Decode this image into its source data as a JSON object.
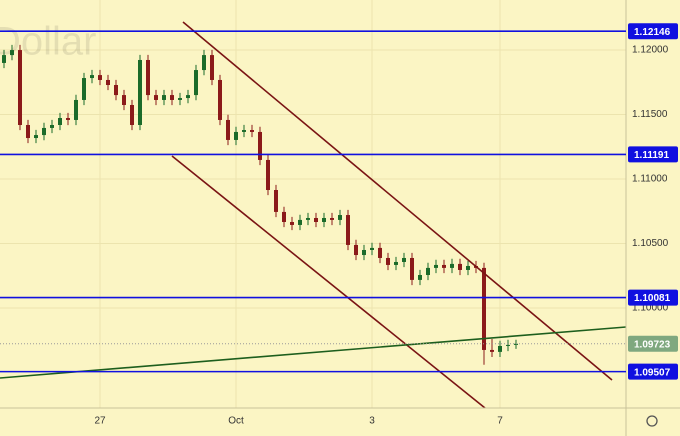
{
  "chart_data": {
    "type": "candlestick",
    "watermark": "Dollar",
    "categories": [
      null,
      null,
      null,
      null,
      null,
      null,
      null,
      null,
      null,
      null,
      null,
      null,
      "27",
      null,
      null,
      null,
      null,
      null,
      null,
      null,
      null,
      null,
      null,
      null,
      null,
      null,
      null,
      null,
      null,
      "Oct",
      null,
      null,
      null,
      null,
      null,
      null,
      null,
      null,
      null,
      null,
      null,
      null,
      null,
      null,
      null,
      null,
      "3",
      null,
      null,
      null,
      null,
      null,
      null,
      null,
      null,
      null,
      null,
      null,
      null,
      null,
      null,
      null,
      "7",
      null,
      null
    ],
    "open": [
      1.119,
      1.11961,
      1.12,
      1.11419,
      1.11318,
      1.11341,
      1.11396,
      1.11419,
      1.11473,
      1.11458,
      1.11613,
      1.11783,
      1.11806,
      1.11768,
      1.11729,
      1.11651,
      1.11574,
      1.11419,
      1.11923,
      1.11651,
      1.11613,
      1.11651,
      1.11613,
      1.11628,
      1.11651,
      1.11845,
      1.11961,
      1.11768,
      1.11458,
      1.11303,
      1.11365,
      1.1138,
      1.11365,
      1.11148,
      1.10915,
      1.10745,
      1.10667,
      1.10644,
      1.10683,
      1.10698,
      1.10667,
      1.10698,
      1.10683,
      1.10721,
      1.10489,
      1.10411,
      1.1045,
      1.10466,
      1.10388,
      1.10334,
      1.10357,
      1.10388,
      1.10218,
      1.10256,
      1.10311,
      1.10334,
      1.10311,
      1.10342,
      1.10295,
      1.10326,
      1.10311,
      1.09675,
      1.0966,
      1.09706,
      1.09714
    ],
    "high": [
      1.12001,
      1.1204,
      1.1204,
      1.11459,
      1.11381,
      1.11436,
      1.11459,
      1.11513,
      1.11513,
      1.11653,
      1.11823,
      1.11846,
      1.11846,
      1.11808,
      1.11769,
      1.11691,
      1.11614,
      1.11963,
      1.11963,
      1.11691,
      1.11691,
      1.11691,
      1.11668,
      1.11691,
      1.11885,
      1.12001,
      1.12001,
      1.11808,
      1.11498,
      1.11405,
      1.1142,
      1.1142,
      1.11405,
      1.11188,
      1.10955,
      1.10785,
      1.10707,
      1.10723,
      1.10738,
      1.10738,
      1.10738,
      1.10738,
      1.10761,
      1.10761,
      1.10529,
      1.1049,
      1.10506,
      1.10506,
      1.10428,
      1.10397,
      1.10428,
      1.10428,
      1.10296,
      1.10351,
      1.10374,
      1.10374,
      1.10382,
      1.10382,
      1.10366,
      1.10366,
      1.10351,
      1.0976,
      1.09746,
      1.09754,
      1.09754
    ],
    "low": [
      1.1186,
      1.11921,
      1.11379,
      1.11278,
      1.11278,
      1.11301,
      1.11356,
      1.11379,
      1.11418,
      1.11418,
      1.11573,
      1.11743,
      1.11728,
      1.11689,
      1.11611,
      1.11534,
      1.11379,
      1.11379,
      1.11611,
      1.11573,
      1.11573,
      1.11573,
      1.11573,
      1.11588,
      1.11611,
      1.11805,
      1.11728,
      1.11418,
      1.11263,
      1.11263,
      1.11325,
      1.11325,
      1.11108,
      1.10875,
      1.10705,
      1.10627,
      1.10604,
      1.10604,
      1.10643,
      1.10627,
      1.10627,
      1.10643,
      1.10643,
      1.10449,
      1.10371,
      1.10371,
      1.1041,
      1.10348,
      1.10294,
      1.10294,
      1.10317,
      1.10178,
      1.10178,
      1.10216,
      1.10271,
      1.10271,
      1.10271,
      1.10255,
      1.10255,
      1.10271,
      1.0956,
      1.0962,
      1.0962,
      1.09666,
      1.09683
    ],
    "close": [
      1.11961,
      1.12,
      1.11419,
      1.11318,
      1.11341,
      1.11396,
      1.11419,
      1.11473,
      1.11458,
      1.11613,
      1.11783,
      1.11806,
      1.11768,
      1.11729,
      1.11651,
      1.11574,
      1.11419,
      1.11923,
      1.11651,
      1.11613,
      1.11651,
      1.11613,
      1.11628,
      1.11651,
      1.11845,
      1.11961,
      1.11768,
      1.11458,
      1.11303,
      1.11365,
      1.1138,
      1.11365,
      1.11148,
      1.10915,
      1.10745,
      1.10667,
      1.10644,
      1.10683,
      1.10698,
      1.10667,
      1.10698,
      1.10683,
      1.10721,
      1.10489,
      1.10411,
      1.1045,
      1.10466,
      1.10388,
      1.10334,
      1.10357,
      1.10388,
      1.10218,
      1.10256,
      1.10311,
      1.10334,
      1.10311,
      1.10342,
      1.10295,
      1.10326,
      1.10311,
      1.09675,
      1.0966,
      1.09706,
      1.09714,
      1.09723
    ],
    "up_color": "#1b6b2a",
    "down_color": "#8b1a1a",
    "ylim": [
      1.09225,
      1.12388
    ],
    "yticks": [
      {
        "value": 1.1,
        "label": "1.10000"
      },
      {
        "value": 1.105,
        "label": "1.10500"
      },
      {
        "value": 1.11,
        "label": "1.11000"
      },
      {
        "value": 1.115,
        "label": "1.11500"
      },
      {
        "value": 1.12,
        "label": "1.12000"
      }
    ],
    "levels": [
      1.12146,
      1.11191,
      1.10081,
      1.09507
    ],
    "level_color": "#1010e0",
    "grid": true
  }
}
